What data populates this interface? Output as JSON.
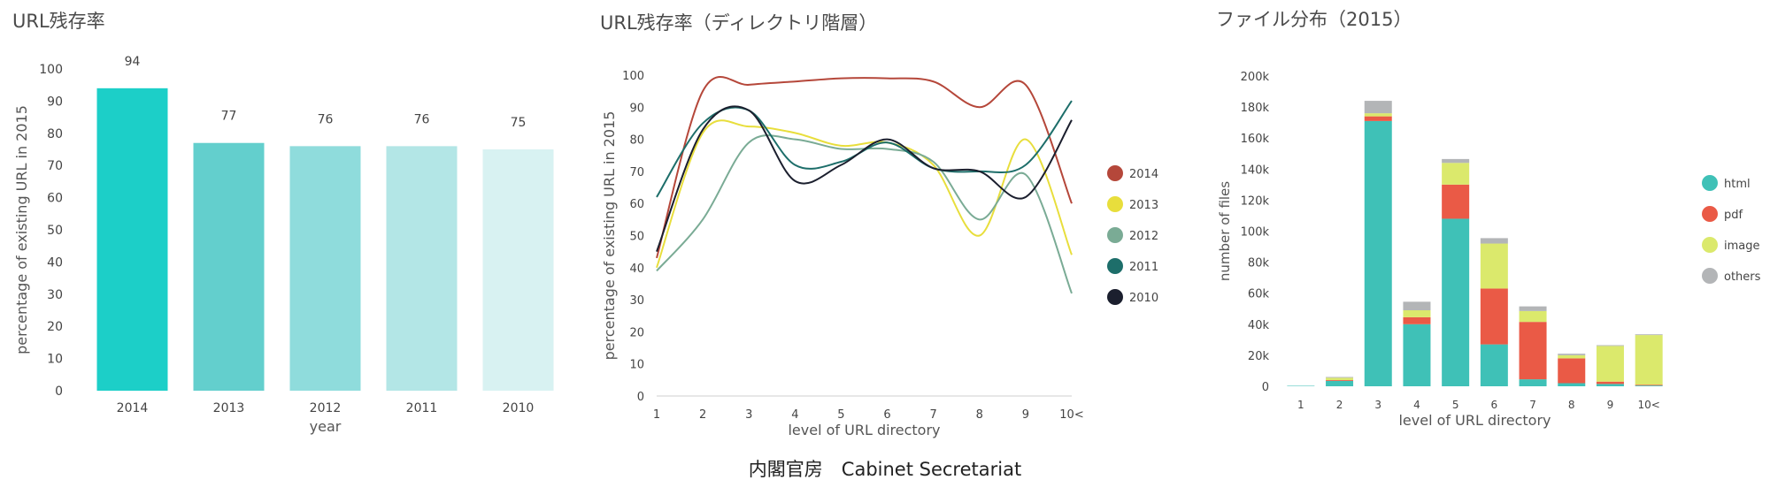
{
  "footer": "内閣官房　Cabinet Secretariat",
  "chart_data": [
    {
      "type": "bar",
      "title": "URL残存率",
      "xlabel": "year",
      "ylabel": "percentage of existing URL in 2015",
      "ylim": [
        0,
        100
      ],
      "yticks": [
        0,
        10,
        20,
        30,
        40,
        50,
        60,
        70,
        80,
        90,
        100
      ],
      "categories": [
        "2014",
        "2013",
        "2012",
        "2011",
        "2010"
      ],
      "values": [
        94,
        77,
        76,
        76,
        75
      ],
      "value_labels": [
        "94",
        "77",
        "76",
        "76",
        "75"
      ],
      "colors": [
        "#1ccfc8",
        "#63cfcd",
        "#8fdcdc",
        "#b3e6e6",
        "#d8f2f2"
      ],
      "grid": false
    },
    {
      "type": "line",
      "title": "URL残存率（ディレクトリ階層）",
      "xlabel": "level of URL directory",
      "ylabel": "percentage of existing URL in 2015",
      "ylim": [
        0,
        100
      ],
      "yticks": [
        0,
        10,
        20,
        30,
        40,
        50,
        60,
        70,
        80,
        90,
        100
      ],
      "categories": [
        "1",
        "2",
        "3",
        "4",
        "5",
        "6",
        "7",
        "8",
        "9",
        "10<"
      ],
      "legend_position": "right",
      "series": [
        {
          "name": "2014",
          "color": "#b5473a",
          "values": [
            43,
            95,
            97,
            98,
            99,
            99,
            98,
            90,
            97,
            60
          ]
        },
        {
          "name": "2013",
          "color": "#e8de3c",
          "values": [
            40,
            82,
            84,
            82,
            78,
            79,
            72,
            50,
            80,
            44
          ]
        },
        {
          "name": "2012",
          "color": "#7aab95",
          "values": [
            39,
            55,
            79,
            80,
            77,
            77,
            73,
            55,
            69,
            32
          ]
        },
        {
          "name": "2011",
          "color": "#1d6e6a",
          "values": [
            62,
            85,
            89,
            72,
            73,
            79,
            71,
            70,
            72,
            92
          ]
        },
        {
          "name": "2010",
          "color": "#1b1f2e",
          "values": [
            45,
            83,
            89,
            67,
            72,
            80,
            71,
            70,
            62,
            86
          ]
        }
      ],
      "grid": false
    },
    {
      "type": "bar",
      "stacked": true,
      "title": "ファイル分布（2015）",
      "xlabel": "level of URL directory",
      "ylabel": "number of files",
      "ylim": [
        0,
        200000
      ],
      "yticks": [
        0,
        20000,
        40000,
        60000,
        80000,
        100000,
        120000,
        140000,
        160000,
        180000,
        200000
      ],
      "ytick_labels": [
        "0",
        "20k",
        "40k",
        "60k",
        "80k",
        "100k",
        "120k",
        "140k",
        "160k",
        "180k",
        "200k"
      ],
      "categories": [
        "1",
        "2",
        "3",
        "4",
        "5",
        "6",
        "7",
        "8",
        "9",
        "10<"
      ],
      "legend_position": "right",
      "series": [
        {
          "name": "html",
          "color": "#3fc1b7",
          "values": [
            300,
            3500,
            171000,
            40000,
            108000,
            27000,
            4500,
            2000,
            1500,
            500
          ]
        },
        {
          "name": "pdf",
          "color": "#ea5a46",
          "values": [
            0,
            500,
            3000,
            4500,
            22000,
            36000,
            37000,
            16000,
            1500,
            500
          ]
        },
        {
          "name": "image",
          "color": "#dbe96c",
          "values": [
            0,
            1500,
            2000,
            4500,
            14000,
            29000,
            7000,
            2000,
            23000,
            32000
          ]
        },
        {
          "name": "others",
          "color": "#b3b5b7",
          "values": [
            0,
            500,
            8000,
            5500,
            2500,
            3500,
            3000,
            1000,
            500,
            500
          ]
        }
      ],
      "grid": false
    }
  ]
}
